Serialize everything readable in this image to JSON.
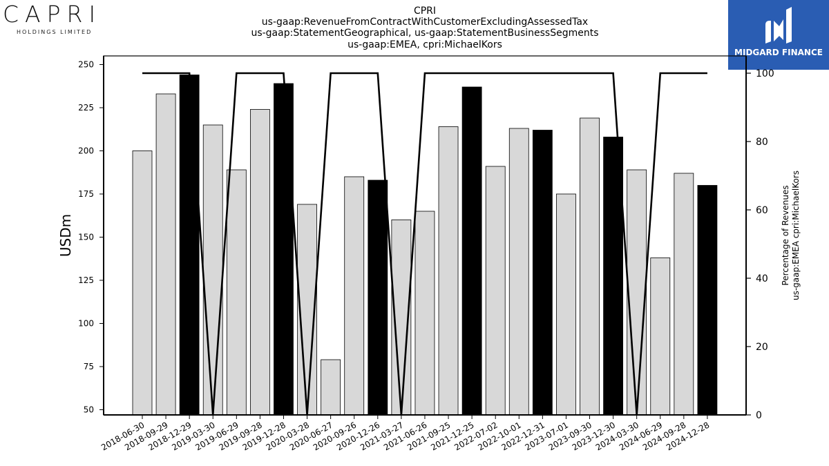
{
  "header": {
    "title_lines": [
      "CPRI",
      "us-gaap:RevenueFromContractWithCustomerExcludingAssessedTax",
      "us-gaap:StatementGeographical, us-gaap:StatementBusinessSegments",
      "us-gaap:EMEA, cpri:MichaelKors"
    ]
  },
  "logos": {
    "left_brand": "CAPRI",
    "left_sub": "HOLDINGS LIMITED",
    "right_text": "MIDGARD FINANCE",
    "right_bg": "#2a5db3"
  },
  "chart_data": {
    "type": "bar",
    "ylabel": "USDm",
    "y2label_lines": [
      "Percentage of Revenues",
      "us-gaap:EMEA cpri:MichaelKors"
    ],
    "ylim": [
      47,
      255
    ],
    "y2lim": [
      0,
      100
    ],
    "yticks": [
      50,
      75,
      100,
      125,
      150,
      175,
      200,
      225,
      250
    ],
    "y2ticks": [
      0,
      20,
      40,
      60,
      80,
      100
    ],
    "categories": [
      "2018-06-30",
      "2018-09-29",
      "2018-12-29",
      "2019-03-30",
      "2019-06-29",
      "2019-09-28",
      "2019-12-28",
      "2020-03-28",
      "2020-06-27",
      "2020-09-26",
      "2020-12-26",
      "2021-03-27",
      "2021-06-26",
      "2021-09-25",
      "2021-12-25",
      "2022-07-02",
      "2022-10-01",
      "2022-12-31",
      "2023-07-01",
      "2023-09-30",
      "2023-12-30",
      "2024-03-30",
      "2024-06-29",
      "2024-09-28",
      "2024-12-28"
    ],
    "values": [
      200,
      233,
      244,
      215,
      189,
      224,
      239,
      169,
      79,
      185,
      183,
      160,
      165,
      214,
      237,
      191,
      213,
      212,
      175,
      219,
      208,
      189,
      138,
      187,
      180
    ],
    "highlight": [
      false,
      false,
      true,
      false,
      false,
      false,
      true,
      false,
      false,
      false,
      true,
      false,
      false,
      false,
      true,
      false,
      false,
      true,
      false,
      false,
      true,
      false,
      false,
      false,
      true
    ],
    "percent_line": [
      100,
      100,
      100,
      0,
      100,
      100,
      100,
      0,
      100,
      100,
      100,
      0,
      100,
      100,
      100,
      100,
      100,
      100,
      100,
      100,
      100,
      0,
      100,
      100,
      100
    ],
    "colors": {
      "bar": "#d8d8d8",
      "bar_highlight": "#000000",
      "line": "#000000"
    }
  }
}
